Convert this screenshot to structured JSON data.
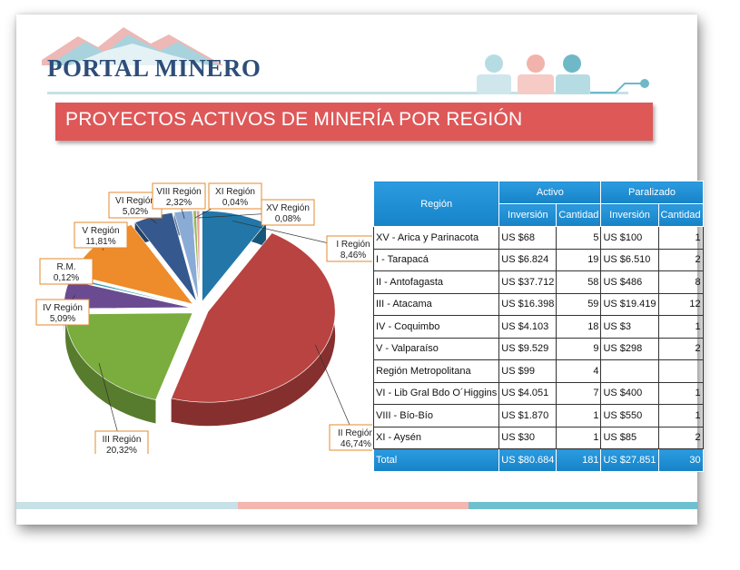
{
  "brand": {
    "name": "PORTAL MINERO"
  },
  "title": "PROYECTOS ACTIVOS DE MINERÍA POR REGIÓN",
  "colors": {
    "title_bg": "#de5858",
    "table_header": "#1a8ed2",
    "brand_text": "#2e4d7a"
  },
  "chart_data": {
    "type": "pie",
    "slices": [
      {
        "label": "I Región",
        "value": 8.46,
        "text": "8,46%",
        "color": "#2277a8"
      },
      {
        "label": "II Región",
        "value": 46.74,
        "text": "46,74%",
        "color": "#b94340"
      },
      {
        "label": "III Región",
        "value": 20.32,
        "text": "20,32%",
        "color": "#7aac3e"
      },
      {
        "label": "IV Región",
        "value": 5.09,
        "text": "5,09%",
        "color": "#6a4b91"
      },
      {
        "label": "R.M.",
        "value": 0.12,
        "text": "0,12%",
        "color": "#2f9fb2"
      },
      {
        "label": "V Región",
        "value": 11.81,
        "text": "11,81%",
        "color": "#ee8b2a"
      },
      {
        "label": "VI Región",
        "value": 5.02,
        "text": "5,02%",
        "color": "#35598f"
      },
      {
        "label": "VIII Región",
        "value": 2.32,
        "text": "2,32%",
        "color": "#8aabd6"
      },
      {
        "label": "XI Región",
        "value": 0.04,
        "text": "0,04%",
        "color": "#9db85a"
      },
      {
        "label": "XV Región",
        "value": 0.08,
        "text": "0,08%",
        "color": "#e8a0a0"
      }
    ]
  },
  "table": {
    "col_region": "Región",
    "group_active": "Activo",
    "group_paused": "Paralizado",
    "sub_inv": "Inversión",
    "sub_qty": "Cantidad",
    "rows": [
      {
        "region": "XV - Arica y Parinacota",
        "a_inv": "US $68",
        "a_qty": "5",
        "p_inv": "US $100",
        "p_qty": "1"
      },
      {
        "region": "I - Tarapacá",
        "a_inv": "US $6.824",
        "a_qty": "19",
        "p_inv": "US $6.510",
        "p_qty": "2"
      },
      {
        "region": "II - Antofagasta",
        "a_inv": "US $37.712",
        "a_qty": "58",
        "p_inv": "US $486",
        "p_qty": "8"
      },
      {
        "region": "III - Atacama",
        "a_inv": "US $16.398",
        "a_qty": "59",
        "p_inv": "US $19.419",
        "p_qty": "12"
      },
      {
        "region": "IV - Coquimbo",
        "a_inv": "US $4.103",
        "a_qty": "18",
        "p_inv": "US $3",
        "p_qty": "1"
      },
      {
        "region": "V - Valparaíso",
        "a_inv": "US $9.529",
        "a_qty": "9",
        "p_inv": "US $298",
        "p_qty": "2"
      },
      {
        "region": "Región Metropolitana",
        "a_inv": "US $99",
        "a_qty": "4",
        "p_inv": "",
        "p_qty": ""
      },
      {
        "region": "VI - Lib Gral Bdo O´Higgins",
        "a_inv": "US $4.051",
        "a_qty": "7",
        "p_inv": "US $400",
        "p_qty": "1"
      },
      {
        "region": "VIII - Bío-Bío",
        "a_inv": "US $1.870",
        "a_qty": "1",
        "p_inv": "US $550",
        "p_qty": "1"
      },
      {
        "region": "XI - Aysén",
        "a_inv": "US $30",
        "a_qty": "1",
        "p_inv": "US $85",
        "p_qty": "2"
      }
    ],
    "total": {
      "region": "Total",
      "a_inv": "US $80.684",
      "a_qty": "181",
      "p_inv": "US $27.851",
      "p_qty": "30"
    }
  }
}
